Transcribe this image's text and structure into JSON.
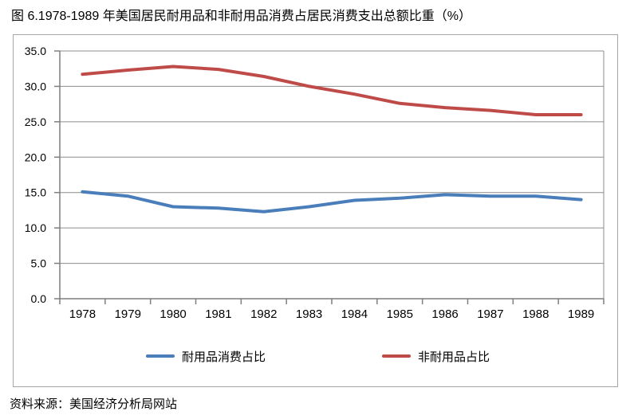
{
  "title": "图 6.1978-1989 年美国居民耐用品和非耐用品消费占居民消费支出总额比重（%）",
  "source": "资料来源：美国经济分析局网站",
  "colors": {
    "grid": "#8c8c8c",
    "axis": "#7f7f7f",
    "frame": "#a6a6a6",
    "text": "#000000",
    "durables_line": "#4a7ebb",
    "nondurables_line": "#be4b48"
  },
  "chart_data": {
    "type": "line",
    "title": "图 6.1978-1989 年美国居民耐用品和非耐用品消费占居民消费支出总额比重（%）",
    "xlabel": "",
    "ylabel": "",
    "categories": [
      "1978",
      "1979",
      "1980",
      "1981",
      "1982",
      "1983",
      "1984",
      "1985",
      "1986",
      "1987",
      "1988",
      "1989"
    ],
    "series": [
      {
        "name": "耐用品消费占比",
        "color": "#4a7ebb",
        "values": [
          15.1,
          14.5,
          13.0,
          12.8,
          12.3,
          13.0,
          13.9,
          14.2,
          14.7,
          14.5,
          14.5,
          14.0
        ]
      },
      {
        "name": "非耐用品占比",
        "color": "#be4b48",
        "values": [
          31.7,
          32.3,
          32.8,
          32.4,
          31.4,
          30.0,
          28.9,
          27.6,
          27.0,
          26.6,
          26.0,
          26.0
        ]
      }
    ],
    "ylim": [
      0,
      35
    ],
    "ytick_step": 5,
    "ytick_decimals": 1,
    "grid": true,
    "legend_position": "bottom"
  }
}
